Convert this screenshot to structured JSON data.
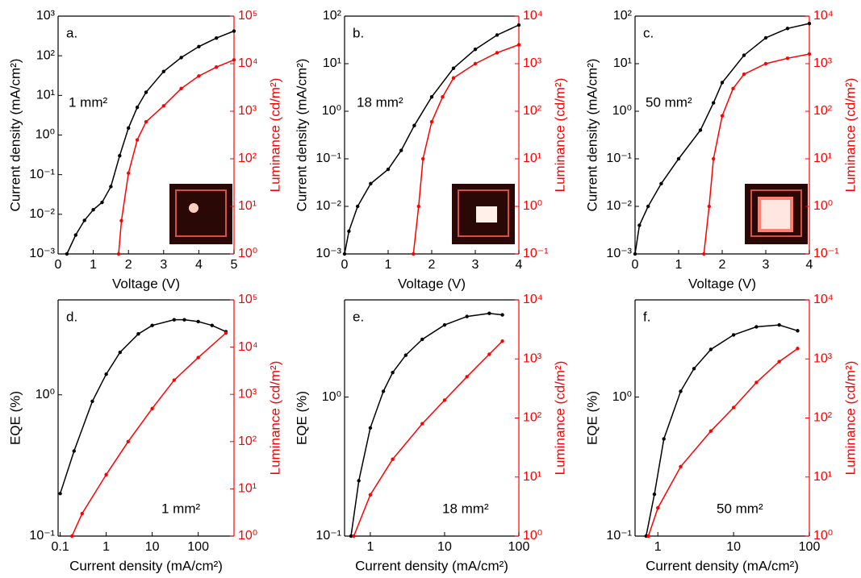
{
  "chart_data": [
    {
      "type": "line",
      "panel_label": "a.",
      "annotation": "1 mm²",
      "x_label": "Voltage (V)",
      "y_label": "Current density (mA/cm²)",
      "y2_label": "Luminance (cd/m²)",
      "xlim": [
        0,
        5
      ],
      "xticks": [
        0,
        1,
        2,
        3,
        4,
        5
      ],
      "xlog": false,
      "ylim": [
        0.001,
        1000
      ],
      "ylog": true,
      "yticks": [
        {
          "value": 0.001,
          "label": "10⁻³"
        },
        {
          "value": 0.01,
          "label": "10⁻²"
        },
        {
          "value": 0.1,
          "label": "10⁻¹"
        },
        {
          "value": 1,
          "label": "10⁰"
        },
        {
          "value": 10,
          "label": "10¹"
        },
        {
          "value": 100,
          "label": "10²"
        },
        {
          "value": 1000,
          "label": "10³"
        }
      ],
      "y2lim": [
        1,
        100000
      ],
      "y2log": true,
      "y2ticks": [
        {
          "value": 1,
          "label": "10⁰"
        },
        {
          "value": 10,
          "label": "10¹"
        },
        {
          "value": 100,
          "label": "10²"
        },
        {
          "value": 1000,
          "label": "10³"
        },
        {
          "value": 10000,
          "label": "10⁴"
        },
        {
          "value": 100000,
          "label": "10⁵"
        }
      ],
      "series": [
        {
          "color": "#000000",
          "axis": "y",
          "x": [
            0.25,
            0.5,
            0.75,
            1,
            1.25,
            1.5,
            1.75,
            2,
            2.25,
            2.5,
            3,
            3.5,
            4,
            4.5,
            5
          ],
          "values": [
            0.001,
            0.003,
            0.007,
            0.013,
            0.02,
            0.05,
            0.3,
            1.5,
            5,
            12,
            40,
            90,
            170,
            280,
            420
          ]
        },
        {
          "color": "#ff0000",
          "axis": "y2",
          "x": [
            1.72,
            1.8,
            2,
            2.25,
            2.5,
            3,
            3.5,
            4,
            4.5,
            5
          ],
          "values": [
            1,
            5,
            50,
            250,
            600,
            1300,
            3000,
            5500,
            8500,
            12000
          ]
        }
      ]
    },
    {
      "type": "line",
      "panel_label": "b.",
      "annotation": "18 mm²",
      "x_label": "Voltage (V)",
      "y_label": "Current density (mA/cm²)",
      "y2_label": "Luminance (cd/m²)",
      "xlim": [
        0,
        4
      ],
      "xticks": [
        0,
        1,
        2,
        3,
        4
      ],
      "xlog": false,
      "ylim": [
        0.001,
        100
      ],
      "ylog": true,
      "yticks": [
        {
          "value": 0.001,
          "label": "10⁻³"
        },
        {
          "value": 0.01,
          "label": "10⁻²"
        },
        {
          "value": 0.1,
          "label": "10⁻¹"
        },
        {
          "value": 1,
          "label": "10⁰"
        },
        {
          "value": 10,
          "label": "10¹"
        },
        {
          "value": 100,
          "label": "10²"
        }
      ],
      "y2lim": [
        0.1,
        10000
      ],
      "y2log": true,
      "y2ticks": [
        {
          "value": 0.1,
          "label": "10⁻¹"
        },
        {
          "value": 1,
          "label": "10⁰"
        },
        {
          "value": 10,
          "label": "10¹"
        },
        {
          "value": 100,
          "label": "10²"
        },
        {
          "value": 1000,
          "label": "10³"
        },
        {
          "value": 10000,
          "label": "10⁴"
        }
      ],
      "series": [
        {
          "color": "#000000",
          "axis": "y",
          "x": [
            0,
            0.1,
            0.3,
            0.6,
            1,
            1.3,
            1.6,
            2,
            2.5,
            3,
            3.5,
            4
          ],
          "values": [
            0.001,
            0.003,
            0.01,
            0.03,
            0.06,
            0.15,
            0.5,
            2,
            8,
            20,
            40,
            65
          ]
        },
        {
          "color": "#ff0000",
          "axis": "y2",
          "x": [
            1.58,
            1.7,
            1.8,
            2,
            2.25,
            2.5,
            3,
            3.5,
            4
          ],
          "values": [
            0.1,
            1,
            10,
            60,
            200,
            500,
            1000,
            1700,
            2500
          ]
        }
      ]
    },
    {
      "type": "line",
      "panel_label": "c.",
      "annotation": "50 mm²",
      "x_label": "Voltage (V)",
      "y_label": "Current density (mA/cm²)",
      "y2_label": "Luminance (cd/m²)",
      "xlim": [
        0,
        4
      ],
      "xticks": [
        0,
        1,
        2,
        3,
        4
      ],
      "xlog": false,
      "ylim": [
        0.001,
        100
      ],
      "ylog": true,
      "yticks": [
        {
          "value": 0.001,
          "label": "10⁻³"
        },
        {
          "value": 0.01,
          "label": "10⁻²"
        },
        {
          "value": 0.1,
          "label": "10⁻¹"
        },
        {
          "value": 1,
          "label": "10⁰"
        },
        {
          "value": 10,
          "label": "10¹"
        },
        {
          "value": 100,
          "label": "10²"
        }
      ],
      "y2lim": [
        0.1,
        10000
      ],
      "y2log": true,
      "y2ticks": [
        {
          "value": 0.1,
          "label": "10⁻¹"
        },
        {
          "value": 1,
          "label": "10⁰"
        },
        {
          "value": 10,
          "label": "10¹"
        },
        {
          "value": 100,
          "label": "10²"
        },
        {
          "value": 1000,
          "label": "10³"
        },
        {
          "value": 10000,
          "label": "10⁴"
        }
      ],
      "series": [
        {
          "color": "#000000",
          "axis": "y",
          "x": [
            0,
            0.1,
            0.3,
            0.6,
            1,
            1.5,
            1.8,
            2,
            2.5,
            3,
            3.5,
            4
          ],
          "values": [
            0.001,
            0.004,
            0.01,
            0.03,
            0.1,
            0.4,
            1.5,
            4,
            15,
            35,
            55,
            70
          ]
        },
        {
          "color": "#ff0000",
          "axis": "y2",
          "x": [
            1.58,
            1.7,
            1.8,
            2,
            2.25,
            2.5,
            3,
            3.5,
            4
          ],
          "values": [
            0.1,
            1,
            10,
            80,
            300,
            600,
            1000,
            1300,
            1600
          ]
        }
      ]
    },
    {
      "type": "line",
      "panel_label": "d.",
      "annotation": "1 mm²",
      "x_label": "Current density (mA/cm²)",
      "y_label": "EQE (%)",
      "y2_label": "Luminance (cd/m²)",
      "xlim": [
        0.09,
        600
      ],
      "xticks": [
        0.1,
        1,
        10,
        100
      ],
      "xlog": true,
      "ylim": [
        0.1,
        4.7
      ],
      "ylog": true,
      "yticks": [
        {
          "value": 0.1,
          "label": "10⁻¹"
        },
        {
          "value": 1,
          "label": "10⁰"
        }
      ],
      "y2lim": [
        1,
        100000
      ],
      "y2log": true,
      "y2ticks": [
        {
          "value": 1,
          "label": "10⁰"
        },
        {
          "value": 10,
          "label": "10¹"
        },
        {
          "value": 100,
          "label": "10²"
        },
        {
          "value": 1000,
          "label": "10³"
        },
        {
          "value": 10000,
          "label": "10⁴"
        },
        {
          "value": 100000,
          "label": "10⁵"
        }
      ],
      "series": [
        {
          "color": "#000000",
          "axis": "y",
          "x": [
            0.1,
            0.2,
            0.5,
            1,
            2,
            5,
            10,
            30,
            50,
            100,
            200,
            400
          ],
          "values": [
            0.2,
            0.4,
            0.9,
            1.4,
            2.0,
            2.7,
            3.1,
            3.4,
            3.4,
            3.3,
            3.1,
            2.8
          ]
        },
        {
          "color": "#ff0000",
          "axis": "y2",
          "x": [
            0.18,
            0.3,
            1,
            3,
            10,
            30,
            100,
            400
          ],
          "values": [
            1,
            3,
            20,
            100,
            500,
            2000,
            6000,
            20000
          ]
        }
      ]
    },
    {
      "type": "line",
      "panel_label": "e.",
      "annotation": "18 mm²",
      "x_label": "Current density (mA/cm²)",
      "y_label": "EQE (%)",
      "y2_label": "Luminance (cd/m²)",
      "xlim": [
        0.45,
        100
      ],
      "xticks": [
        1,
        10,
        100
      ],
      "xlog": true,
      "ylim": [
        0.1,
        5
      ],
      "ylog": true,
      "yticks": [
        {
          "value": 0.1,
          "label": "10⁻¹"
        },
        {
          "value": 1,
          "label": "10⁰"
        }
      ],
      "y2lim": [
        1,
        10000
      ],
      "y2log": true,
      "y2ticks": [
        {
          "value": 1,
          "label": "10⁰"
        },
        {
          "value": 10,
          "label": "10¹"
        },
        {
          "value": 100,
          "label": "10²"
        },
        {
          "value": 1000,
          "label": "10³"
        },
        {
          "value": 10000,
          "label": "10⁴"
        }
      ],
      "series": [
        {
          "color": "#000000",
          "axis": "y",
          "x": [
            0.55,
            0.7,
            1,
            1.5,
            2,
            3,
            5,
            10,
            20,
            40,
            60
          ],
          "values": [
            0.1,
            0.25,
            0.6,
            1.1,
            1.5,
            2.0,
            2.6,
            3.3,
            3.8,
            4.0,
            3.9
          ]
        },
        {
          "color": "#ff0000",
          "axis": "y2",
          "x": [
            0.6,
            1,
            2,
            5,
            10,
            20,
            40,
            60
          ],
          "values": [
            1,
            5,
            20,
            80,
            200,
            500,
            1200,
            2000
          ]
        }
      ]
    },
    {
      "type": "line",
      "panel_label": "f.",
      "annotation": "50 mm²",
      "x_label": "Current density (mA/cm²)",
      "y_label": "EQE (%)",
      "y2_label": "Luminance (cd/m²)",
      "xlim": [
        0.5,
        100
      ],
      "xticks": [
        1,
        10,
        100
      ],
      "xlog": true,
      "ylim": [
        0.1,
        5
      ],
      "ylog": true,
      "yticks": [
        {
          "value": 0.1,
          "label": "10⁻¹"
        },
        {
          "value": 1,
          "label": "10⁰"
        }
      ],
      "y2lim": [
        1,
        10000
      ],
      "y2log": true,
      "y2ticks": [
        {
          "value": 1,
          "label": "10⁰"
        },
        {
          "value": 10,
          "label": "10¹"
        },
        {
          "value": 100,
          "label": "10²"
        },
        {
          "value": 1000,
          "label": "10³"
        },
        {
          "value": 10000,
          "label": "10⁴"
        }
      ],
      "series": [
        {
          "color": "#000000",
          "axis": "y",
          "x": [
            0.7,
            0.9,
            1.2,
            2,
            3,
            5,
            10,
            20,
            40,
            70
          ],
          "values": [
            0.1,
            0.2,
            0.5,
            1.1,
            1.6,
            2.2,
            2.8,
            3.2,
            3.3,
            3.0
          ]
        },
        {
          "color": "#ff0000",
          "axis": "y2",
          "x": [
            0.75,
            1,
            2,
            5,
            10,
            20,
            40,
            70
          ],
          "values": [
            1,
            3,
            15,
            60,
            150,
            400,
            900,
            1500
          ]
        }
      ]
    }
  ]
}
